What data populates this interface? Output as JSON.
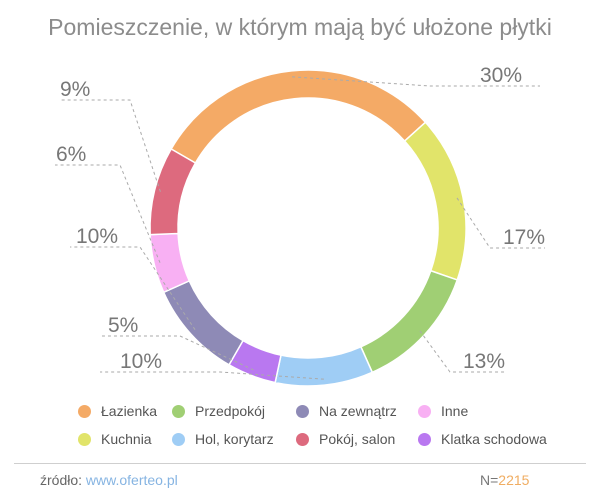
{
  "title": "Pomieszczenie, w którym mają być ułożone płytki",
  "chart_data": {
    "type": "pie",
    "donut": true,
    "title": "Pomieszczenie, w którym mają być ułożone płytki",
    "legend_position": "bottom",
    "slices": [
      {
        "label": "Łazienka",
        "value": 30,
        "display": "30%",
        "color": "#f4aa66"
      },
      {
        "label": "Kuchnia",
        "value": 17,
        "display": "17%",
        "color": "#e1e46a"
      },
      {
        "label": "Przedpokój",
        "value": 13,
        "display": "13%",
        "color": "#a0cf74"
      },
      {
        "label": "Hol, korytarz",
        "value": 10,
        "display": "10%",
        "color": "#9fcdf5"
      },
      {
        "label": "Klatka schodowa",
        "value": 5,
        "display": "5%",
        "color": "#b978f0"
      },
      {
        "label": "Na zewnątrz",
        "value": 10,
        "display": "10%",
        "color": "#8e8ab6"
      },
      {
        "label": "Inne",
        "value": 6,
        "display": "6%",
        "color": "#f8b0f3"
      },
      {
        "label": "Pokój, salon",
        "value": 9,
        "display": "9%",
        "color": "#dd6a7e"
      }
    ]
  },
  "legend": [
    {
      "label": "Łazienka",
      "color": "#f4aa66"
    },
    {
      "label": "Przedpokój",
      "color": "#a0cf74"
    },
    {
      "label": "Na zewnątrz",
      "color": "#8e8ab6"
    },
    {
      "label": "Inne",
      "color": "#f8b0f3"
    },
    {
      "label": "Kuchnia",
      "color": "#e1e46a"
    },
    {
      "label": "Hol, korytarz",
      "color": "#9fcdf5"
    },
    {
      "label": "Pokój, salon",
      "color": "#dd6a7e"
    },
    {
      "label": "Klatka schodowa",
      "color": "#b978f0"
    }
  ],
  "footer": {
    "source_prefix": "źródło: ",
    "source_link": "www.oferteo.pl",
    "sample_prefix": "N=",
    "sample_value": "2215"
  }
}
